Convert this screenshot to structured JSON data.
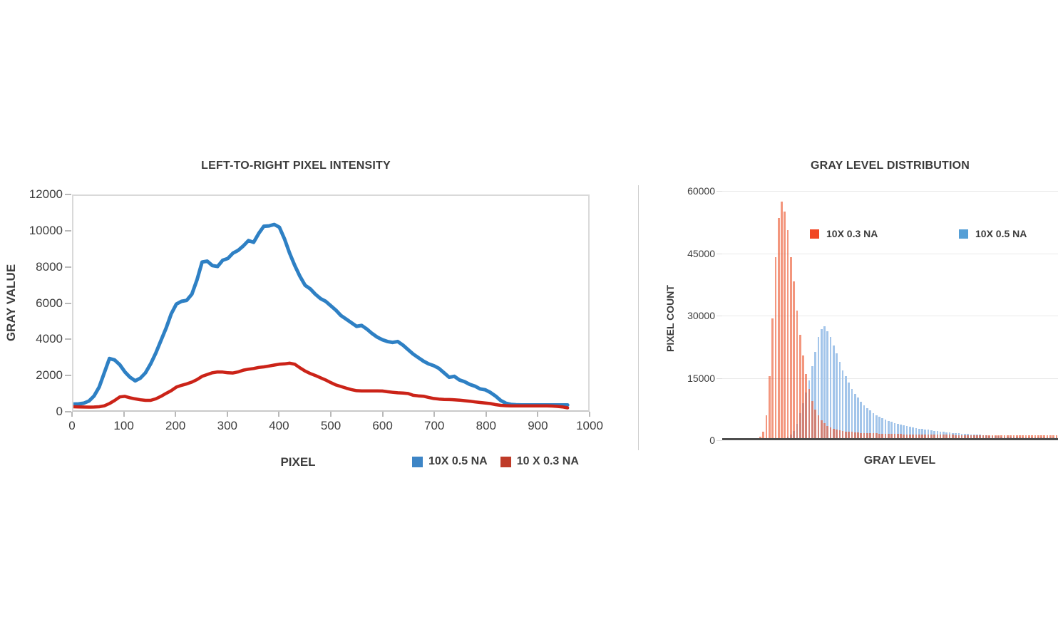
{
  "page": {
    "background": "#ffffff"
  },
  "chart_data": [
    {
      "type": "line",
      "title": "LEFT-TO-RIGHT PIXEL INTENSITY",
      "xlabel": "PIXEL",
      "ylabel": "GRAY VALUE",
      "xlim": [
        0,
        1000
      ],
      "ylim": [
        0,
        12000
      ],
      "x_ticks": [
        0,
        100,
        200,
        300,
        400,
        500,
        600,
        700,
        800,
        900,
        1000
      ],
      "y_ticks": [
        0,
        2000,
        4000,
        6000,
        8000,
        10000,
        12000
      ],
      "grid": "off",
      "legend_position": "bottom-right",
      "legend": [
        {
          "label": "10X 0.5 NA",
          "color": "#3d85c6"
        },
        {
          "label": "10 X 0.3 NA",
          "color": "#bf3b28"
        }
      ],
      "x_start": 0,
      "x_step": 10,
      "series": [
        {
          "name": "10X 0.5 NA",
          "color": "#2e80c4",
          "values": [
            350,
            360,
            400,
            520,
            800,
            1300,
            2100,
            2900,
            2820,
            2550,
            2150,
            1850,
            1650,
            1800,
            2100,
            2600,
            3200,
            3900,
            4600,
            5400,
            5950,
            6100,
            6150,
            6500,
            7300,
            8300,
            8350,
            8100,
            8050,
            8400,
            8500,
            8800,
            8950,
            9200,
            9500,
            9400,
            9900,
            10300,
            10320,
            10400,
            10250,
            9600,
            8800,
            8100,
            7500,
            7000,
            6800,
            6500,
            6250,
            6100,
            5850,
            5600,
            5300,
            5100,
            4900,
            4700,
            4750,
            4550,
            4300,
            4100,
            3950,
            3850,
            3800,
            3850,
            3650,
            3400,
            3150,
            2950,
            2750,
            2600,
            2500,
            2350,
            2100,
            1850,
            1900,
            1700,
            1600,
            1450,
            1350,
            1200,
            1150,
            1000,
            800,
            550,
            400,
            330,
            310,
            300,
            300,
            300,
            300,
            300,
            300,
            300,
            300,
            300,
            300
          ]
        },
        {
          "name": "10 X 0.3 NA",
          "color": "#cb2318",
          "values": [
            200,
            190,
            185,
            180,
            185,
            200,
            250,
            380,
            550,
            750,
            780,
            700,
            640,
            590,
            560,
            560,
            640,
            780,
            950,
            1100,
            1300,
            1400,
            1480,
            1580,
            1720,
            1900,
            2000,
            2100,
            2150,
            2140,
            2100,
            2090,
            2150,
            2250,
            2300,
            2340,
            2400,
            2430,
            2480,
            2530,
            2580,
            2600,
            2640,
            2580,
            2380,
            2200,
            2060,
            1950,
            1820,
            1700,
            1550,
            1420,
            1330,
            1240,
            1160,
            1100,
            1090,
            1090,
            1090,
            1085,
            1080,
            1040,
            1010,
            980,
            970,
            940,
            840,
            810,
            790,
            720,
            660,
            630,
            610,
            600,
            590,
            570,
            540,
            510,
            470,
            440,
            410,
            380,
            320,
            280,
            260,
            250,
            250,
            250,
            250,
            250,
            250,
            250,
            250,
            240,
            220,
            190,
            140
          ]
        }
      ]
    },
    {
      "type": "bar",
      "title": "GRAY LEVEL DISTRIBUTION",
      "xlabel": "GRAY LEVEL",
      "ylabel": "PIXEL COUNT",
      "ylim": [
        0,
        60000
      ],
      "y_ticks": [
        0,
        15000,
        30000,
        45000,
        60000
      ],
      "x_tick_labels": "none",
      "grid": "horizontal",
      "legend_position": "inside-top",
      "legend": [
        {
          "label": "10X 0.3 NA",
          "color": "#f14623"
        },
        {
          "label": "10X 0.5 NA",
          "color": "#569fd6"
        }
      ],
      "bins": 110,
      "series": [
        {
          "name": "10X 0.5 NA",
          "color": "#a3c5ea",
          "values": [
            0,
            0,
            0,
            0,
            0,
            0,
            0,
            0,
            0,
            0,
            0,
            0,
            0,
            0,
            0,
            0,
            0,
            0,
            0,
            0,
            0,
            300,
            800,
            1800,
            3500,
            6000,
            8500,
            11000,
            14000,
            17500,
            21000,
            24500,
            26500,
            27200,
            26000,
            24500,
            22500,
            20500,
            18500,
            16500,
            15000,
            13500,
            12000,
            10800,
            9800,
            8800,
            8000,
            7300,
            6700,
            6100,
            5600,
            5200,
            4800,
            4500,
            4200,
            3900,
            3700,
            3500,
            3300,
            3100,
            2900,
            2750,
            2600,
            2450,
            2300,
            2200,
            2100,
            2000,
            1900,
            1800,
            1700,
            1600,
            1550,
            1450,
            1400,
            1300,
            1250,
            1200,
            1100,
            1050,
            1000,
            950,
            900,
            850,
            800,
            700,
            650,
            600,
            550,
            500,
            450,
            400,
            370,
            340,
            310,
            290,
            270,
            250,
            230,
            220,
            210,
            200,
            190,
            180,
            170,
            160,
            150,
            150,
            140,
            140
          ]
        },
        {
          "name": "10X 0.3 NA",
          "color": "rgba(235,85,45,0.62)",
          "values": [
            0,
            0,
            0,
            0,
            0,
            0,
            0,
            0,
            0,
            0,
            0,
            0,
            400,
            1500,
            5500,
            15000,
            29000,
            44000,
            53500,
            57500,
            55000,
            50500,
            44000,
            38000,
            31000,
            25000,
            20000,
            15500,
            12000,
            9000,
            7000,
            5500,
            4400,
            3600,
            3000,
            2600,
            2300,
            2050,
            1900,
            1750,
            1650,
            1550,
            1500,
            1400,
            1350,
            1300,
            1280,
            1250,
            1220,
            1200,
            1150,
            1130,
            1100,
            1080,
            1050,
            1030,
            1000,
            990,
            970,
            950,
            940,
            930,
            920,
            900,
            890,
            880,
            870,
            860,
            850,
            840,
            830,
            820,
            810,
            800,
            800,
            790,
            780,
            780,
            770,
            760,
            760,
            750,
            750,
            740,
            740,
            730,
            730,
            720,
            720,
            710,
            710,
            700,
            700,
            700,
            690,
            690,
            680,
            680,
            680,
            670,
            670,
            660,
            660,
            660,
            650,
            650,
            650,
            640,
            640,
            640
          ]
        }
      ]
    }
  ]
}
